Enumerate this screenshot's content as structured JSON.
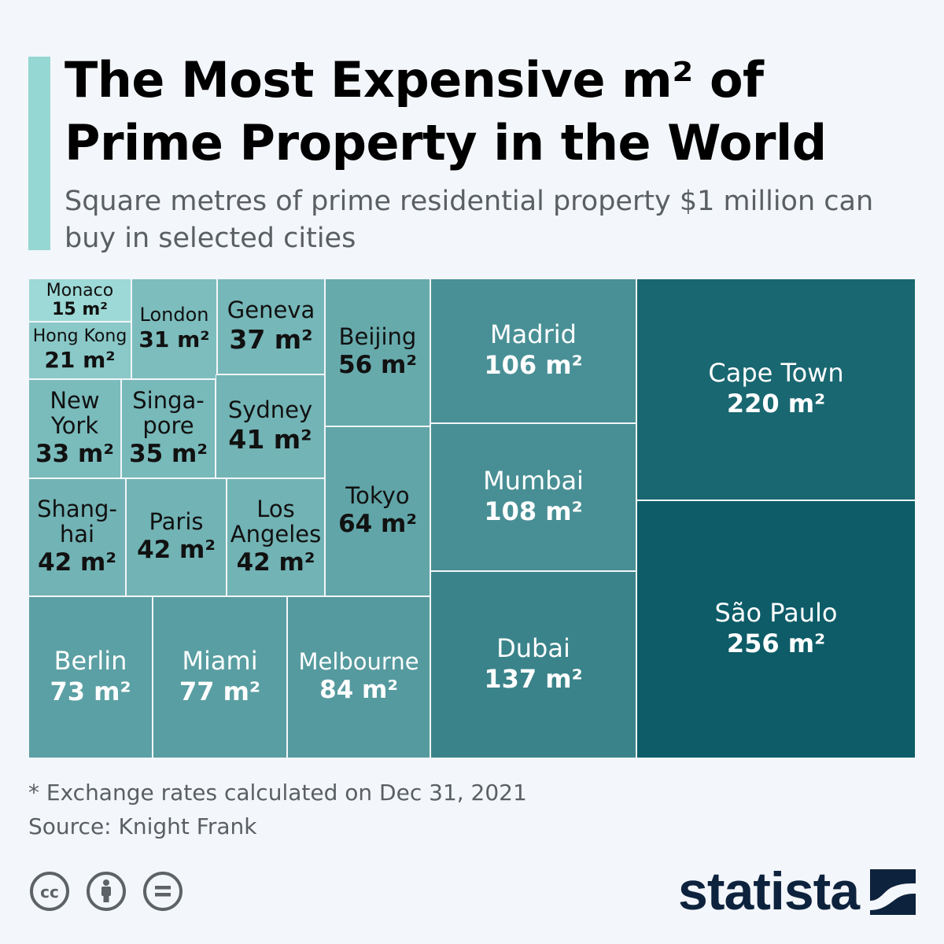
{
  "title": "The Most Expensive m² of Prime Property in the World",
  "subtitle": "Square metres of prime residential property $1 million can buy in selected cities",
  "footnote": "* Exchange rates calculated on Dec 31, 2021",
  "source": "Source: Knight Frank",
  "brand": "statista",
  "colors": {
    "background": "#f3f6fa",
    "accent": "#95d7d3",
    "tile_light": "#9dd9d6",
    "tile_dark": "#0d5c68",
    "brand": "#0d223d"
  },
  "icons": [
    "cc-icon",
    "attribution-icon",
    "no-derivatives-icon",
    "statista-logo-icon"
  ],
  "chart_data": {
    "type": "treemap",
    "title": "The Most Expensive m² of Prime Property in the World",
    "unit": "m²",
    "series": [
      {
        "name": "Monaco",
        "label": "Monaco",
        "value": 15,
        "display": "15 m²"
      },
      {
        "name": "Hong Kong",
        "label": "Hong Kong",
        "value": 21,
        "display": "21 m²"
      },
      {
        "name": "London",
        "label": "London",
        "value": 31,
        "display": "31 m²"
      },
      {
        "name": "New York",
        "label": "New\nYork",
        "value": 33,
        "display": "33 m²"
      },
      {
        "name": "Singapore",
        "label": "Singa-\npore",
        "value": 35,
        "display": "35 m²"
      },
      {
        "name": "Geneva",
        "label": "Geneva",
        "value": 37,
        "display": "37 m²"
      },
      {
        "name": "Sydney",
        "label": "Sydney",
        "value": 41,
        "display": "41 m²"
      },
      {
        "name": "Shanghai",
        "label": "Shang-\nhai",
        "value": 42,
        "display": "42 m²"
      },
      {
        "name": "Paris",
        "label": "Paris",
        "value": 42,
        "display": "42 m²"
      },
      {
        "name": "Los Angeles",
        "label": "Los\nAngeles",
        "value": 42,
        "display": "42 m²"
      },
      {
        "name": "Beijing",
        "label": "Beijing",
        "value": 56,
        "display": "56 m²"
      },
      {
        "name": "Tokyo",
        "label": "Tokyo",
        "value": 64,
        "display": "64 m²"
      },
      {
        "name": "Berlin",
        "label": "Berlin",
        "value": 73,
        "display": "73 m²"
      },
      {
        "name": "Miami",
        "label": "Miami",
        "value": 77,
        "display": "77 m²"
      },
      {
        "name": "Melbourne",
        "label": "Melbourne",
        "value": 84,
        "display": "84 m²"
      },
      {
        "name": "Madrid",
        "label": "Madrid",
        "value": 106,
        "display": "106 m²"
      },
      {
        "name": "Mumbai",
        "label": "Mumbai",
        "value": 108,
        "display": "108 m²"
      },
      {
        "name": "Dubai",
        "label": "Dubai",
        "value": 137,
        "display": "137 m²"
      },
      {
        "name": "Cape Town",
        "label": "Cape Town",
        "value": 220,
        "display": "220 m²"
      },
      {
        "name": "São Paulo",
        "label": "São Paulo",
        "value": 256,
        "display": "256 m²"
      }
    ]
  }
}
